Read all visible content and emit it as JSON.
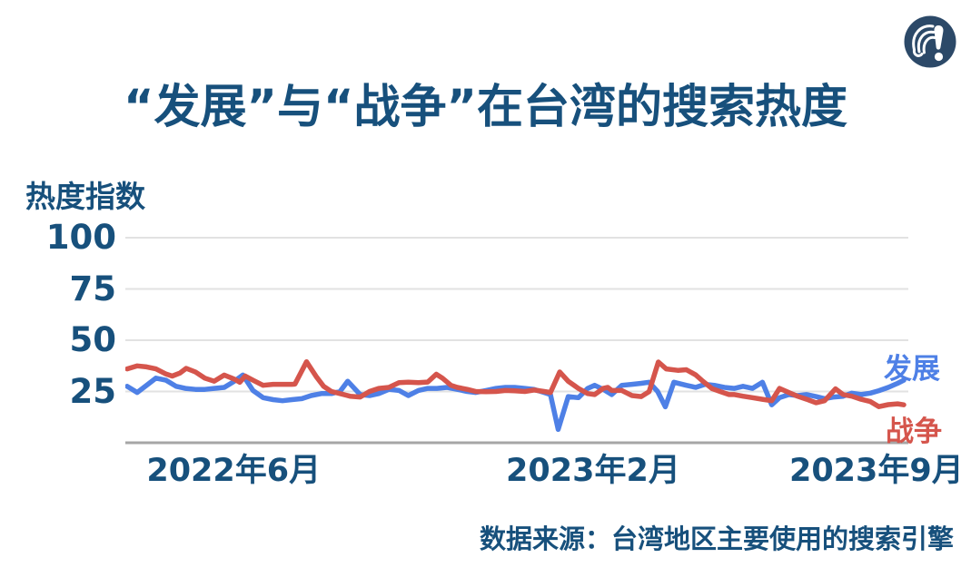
{
  "title": "“发展”与“战争”在台湾的搜索热度",
  "source_note": "数据来源：台湾地区主要使用的搜索引擎",
  "logo_icon": "question-exclamation-mark-icon",
  "colors": {
    "accent_dark_blue": "#17507C",
    "line_blue": "#4E80E6",
    "line_red": "#D5554C",
    "grid": "#E2E2E2",
    "baseline": "#A6A6A6",
    "logo_navy": "#2C4968"
  },
  "chart_data": {
    "type": "line",
    "title": "“发展”与“战争”在台湾的搜索热度",
    "ylabel": "热度指数",
    "xlabel": "",
    "ylim": [
      0,
      100
    ],
    "y_ticks": [
      100,
      75,
      50,
      25
    ],
    "grid": "horizontal",
    "legend_position": "line-end-labels-right",
    "x_unit": "percent_of_time_range (approx. 2022-03 to 2023-10, weekly)",
    "x_tick_labels": [
      "2022年6月",
      "2023年2月",
      "2023年9月"
    ],
    "x_tick_positions_pct": [
      13.8,
      59.6,
      95.7
    ],
    "series": [
      {
        "name": "发展",
        "color": "#4E80E6",
        "points": [
          [
            0,
            27.5
          ],
          [
            1.3,
            24.5
          ],
          [
            2.5,
            28
          ],
          [
            3.7,
            31.5
          ],
          [
            5,
            30.5
          ],
          [
            6.3,
            27.5
          ],
          [
            7.5,
            26.5
          ],
          [
            8.8,
            26
          ],
          [
            10,
            26
          ],
          [
            11.2,
            26.5
          ],
          [
            12.5,
            27
          ],
          [
            13.8,
            30
          ],
          [
            14.9,
            33
          ],
          [
            16.2,
            25.5
          ],
          [
            17.5,
            22
          ],
          [
            18.8,
            21
          ],
          [
            20,
            20.5
          ],
          [
            21.2,
            21
          ],
          [
            22.5,
            21.5
          ],
          [
            23.7,
            23
          ],
          [
            25,
            24
          ],
          [
            26.3,
            24
          ],
          [
            27.4,
            25
          ],
          [
            28.4,
            30
          ],
          [
            30,
            23.5
          ],
          [
            31.2,
            23
          ],
          [
            32.4,
            24
          ],
          [
            33.7,
            26
          ],
          [
            35,
            25.5
          ],
          [
            36.2,
            23
          ],
          [
            37.5,
            25.5
          ],
          [
            38.7,
            26.5
          ],
          [
            39.9,
            26.5
          ],
          [
            41.2,
            27
          ],
          [
            42.5,
            26
          ],
          [
            43.8,
            25
          ],
          [
            44.9,
            24.5
          ],
          [
            46.2,
            25.5
          ],
          [
            47.5,
            26.5
          ],
          [
            48.7,
            27
          ],
          [
            49.9,
            27
          ],
          [
            51.2,
            26.5
          ],
          [
            52.4,
            26
          ],
          [
            53.7,
            24.5
          ],
          [
            54.5,
            23.5
          ],
          [
            55.5,
            6.5
          ],
          [
            56.8,
            22.5
          ],
          [
            58.1,
            22
          ],
          [
            59.3,
            26.5
          ],
          [
            60.2,
            28
          ],
          [
            61.3,
            26
          ],
          [
            62.4,
            23.5
          ],
          [
            63.7,
            28
          ],
          [
            65,
            28.5
          ],
          [
            66.2,
            29
          ],
          [
            67.2,
            29.5
          ],
          [
            68.3,
            25
          ],
          [
            69.3,
            17.5
          ],
          [
            70.4,
            29.5
          ],
          [
            72,
            28
          ],
          [
            73.2,
            27
          ],
          [
            74.4,
            28.5
          ],
          [
            75.6,
            28
          ],
          [
            76.9,
            27
          ],
          [
            78.2,
            26.5
          ],
          [
            79.3,
            27.5
          ],
          [
            80.5,
            26.5
          ],
          [
            81.8,
            29.5
          ],
          [
            83,
            18.5
          ],
          [
            84,
            22
          ],
          [
            85.2,
            23.5
          ],
          [
            86.3,
            23
          ],
          [
            87.5,
            23.5
          ],
          [
            88.7,
            22.5
          ],
          [
            89.8,
            21.5
          ],
          [
            91,
            22.3
          ],
          [
            92.2,
            22.7
          ],
          [
            93.3,
            24.2
          ],
          [
            94.5,
            23.5
          ],
          [
            95.7,
            24.2
          ],
          [
            96.8,
            25.4
          ],
          [
            98,
            27
          ],
          [
            99.2,
            29
          ],
          [
            100,
            30.5
          ]
        ]
      },
      {
        "name": "战争",
        "color": "#D5554C",
        "points": [
          [
            0,
            36
          ],
          [
            1.3,
            37.5
          ],
          [
            2.5,
            37
          ],
          [
            3.7,
            36
          ],
          [
            5,
            33.5
          ],
          [
            5.8,
            32.5
          ],
          [
            6.8,
            34
          ],
          [
            7.6,
            36.3
          ],
          [
            8.8,
            34.5
          ],
          [
            10,
            31.5
          ],
          [
            11.2,
            30
          ],
          [
            12.5,
            33
          ],
          [
            13.8,
            31
          ],
          [
            14.5,
            29.5
          ],
          [
            15.2,
            32.5
          ],
          [
            16.2,
            30.5
          ],
          [
            17.5,
            28
          ],
          [
            18.8,
            28.5
          ],
          [
            20,
            28.5
          ],
          [
            21.2,
            28.5
          ],
          [
            21.6,
            28.6
          ],
          [
            23.1,
            39.5
          ],
          [
            24.4,
            32
          ],
          [
            25.3,
            27.5
          ],
          [
            26.3,
            25
          ],
          [
            27.4,
            24
          ],
          [
            28.7,
            22.7
          ],
          [
            30,
            22.3
          ],
          [
            31.2,
            25
          ],
          [
            32.4,
            26.5
          ],
          [
            33.7,
            27
          ],
          [
            35,
            29.3
          ],
          [
            36.2,
            29.5
          ],
          [
            37.5,
            29.3
          ],
          [
            38.7,
            29.6
          ],
          [
            39.8,
            33.4
          ],
          [
            40.6,
            31.5
          ],
          [
            41.7,
            28
          ],
          [
            42.5,
            27
          ],
          [
            43.8,
            26
          ],
          [
            44.9,
            25
          ],
          [
            46.2,
            24.9
          ],
          [
            47.5,
            25
          ],
          [
            48.7,
            25.5
          ],
          [
            49.9,
            25.3
          ],
          [
            51.2,
            25
          ],
          [
            52.4,
            25.7
          ],
          [
            53.7,
            25
          ],
          [
            54.5,
            24.5
          ],
          [
            55.7,
            34.5
          ],
          [
            56.8,
            30
          ],
          [
            58.1,
            26.5
          ],
          [
            59.3,
            24
          ],
          [
            60.2,
            23.5
          ],
          [
            61.3,
            26.5
          ],
          [
            61.9,
            27
          ],
          [
            62.4,
            25.5
          ],
          [
            63.7,
            25.5
          ],
          [
            65,
            23
          ],
          [
            66.2,
            22.5
          ],
          [
            67.2,
            24.9
          ],
          [
            68.4,
            39.4
          ],
          [
            69.4,
            36
          ],
          [
            70.9,
            35.3
          ],
          [
            72,
            35.6
          ],
          [
            73.2,
            33.1
          ],
          [
            74.1,
            30.1
          ],
          [
            75.3,
            26.4
          ],
          [
            76.4,
            24.9
          ],
          [
            77.5,
            23.5
          ],
          [
            78.2,
            23.5
          ],
          [
            79.3,
            22.7
          ],
          [
            80.5,
            22
          ],
          [
            81.8,
            21.2
          ],
          [
            83,
            20.5
          ],
          [
            84,
            26.5
          ],
          [
            85.2,
            24.5
          ],
          [
            86.3,
            22.7
          ],
          [
            87.5,
            21.2
          ],
          [
            88.7,
            19.5
          ],
          [
            89.8,
            20.5
          ],
          [
            91.2,
            26.3
          ],
          [
            92.2,
            23.5
          ],
          [
            93.3,
            22.7
          ],
          [
            94.5,
            21.2
          ],
          [
            95.7,
            20.1
          ],
          [
            96.8,
            17.6
          ],
          [
            98,
            18.6
          ],
          [
            99.2,
            19
          ],
          [
            100,
            18.5
          ]
        ]
      }
    ]
  }
}
